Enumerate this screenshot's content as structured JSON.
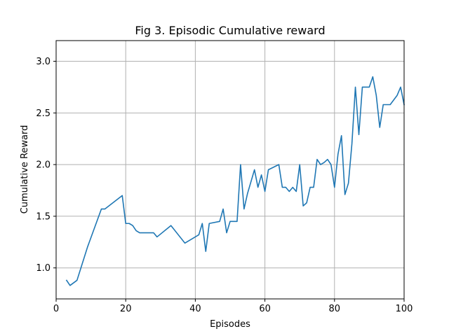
{
  "chart_data": {
    "type": "line",
    "title": "Fig 3. Episodic Cumulative reward",
    "xlabel": "Episodes",
    "ylabel": "Cumulative Reward",
    "xlim": [
      0,
      100
    ],
    "ylim": [
      0.7,
      3.2
    ],
    "xticks": [
      0,
      20,
      40,
      60,
      80,
      100
    ],
    "yticks": [
      1.0,
      1.5,
      2.0,
      2.5,
      3.0
    ],
    "xtick_labels": [
      "0",
      "20",
      "40",
      "60",
      "80",
      "100"
    ],
    "ytick_labels": [
      "1.0",
      "1.5",
      "2.0",
      "2.5",
      "3.0"
    ],
    "grid": true,
    "line_color": "#1f77b4",
    "series": [
      {
        "x": [
          3,
          4,
          6,
          9,
          13,
          14,
          19,
          20,
          21,
          22,
          23,
          24,
          25,
          28,
          29,
          33,
          37,
          41,
          42,
          43,
          44,
          47,
          48,
          49,
          50,
          52,
          53,
          54,
          55,
          57,
          58,
          59,
          60,
          61,
          64,
          65,
          66,
          67,
          68,
          69,
          70,
          71,
          72,
          73,
          74,
          75,
          76,
          77,
          78,
          79,
          80,
          81,
          82,
          83,
          84,
          85,
          86,
          87,
          88,
          90,
          91,
          92,
          93,
          94,
          96,
          98,
          99,
          100
        ],
        "y": [
          0.88,
          0.83,
          0.88,
          1.2,
          1.57,
          1.57,
          1.7,
          1.43,
          1.43,
          1.41,
          1.36,
          1.34,
          1.34,
          1.34,
          1.3,
          1.41,
          1.24,
          1.32,
          1.43,
          1.16,
          1.43,
          1.45,
          1.57,
          1.34,
          1.45,
          1.45,
          2.0,
          1.57,
          1.72,
          1.95,
          1.78,
          1.9,
          1.74,
          1.95,
          2.0,
          1.78,
          1.78,
          1.74,
          1.78,
          1.74,
          2.0,
          1.6,
          1.63,
          1.78,
          1.78,
          2.05,
          2.0,
          2.02,
          2.05,
          2.0,
          1.78,
          2.1,
          2.28,
          1.71,
          1.82,
          2.2,
          2.75,
          2.29,
          2.75,
          2.75,
          2.85,
          2.67,
          2.36,
          2.58,
          2.58,
          2.67,
          2.75,
          2.58
        ]
      }
    ]
  }
}
